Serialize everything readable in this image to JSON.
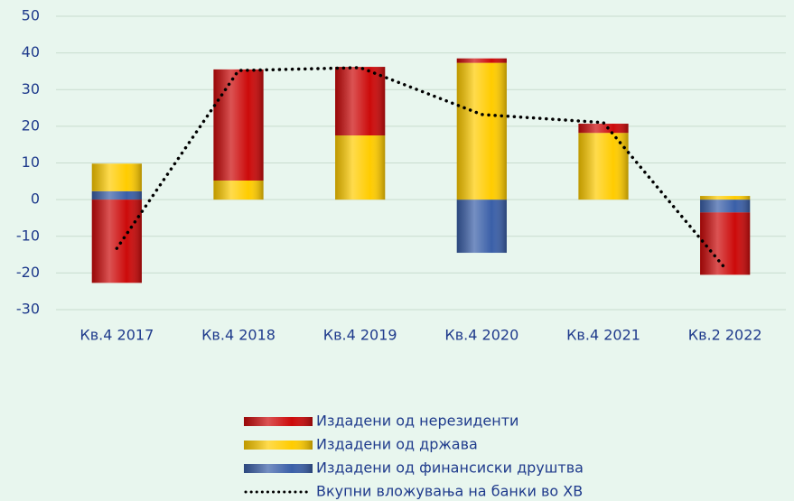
{
  "chart_data": {
    "type": "bar",
    "stacked": true,
    "categories": [
      "Кв.4 2017",
      "Кв.4 2018",
      "Кв.4 2019",
      "Кв.4 2020",
      "Кв.4 2021",
      "Кв.2 2022"
    ],
    "series": [
      {
        "name": "Издадени од нерезиденти",
        "color": "#cc0a0a",
        "values": [
          -22.7,
          30.3,
          18.7,
          1.2,
          2.5,
          -17
        ]
      },
      {
        "name": "Издадени од држава",
        "color": "#ffcc00",
        "values": [
          7.5,
          5.2,
          17.5,
          37.3,
          18.2,
          1
        ]
      },
      {
        "name": "Издадени од финансиски друштва",
        "color": "#3a5fa8",
        "values": [
          2.3,
          0,
          0,
          -14.5,
          0,
          -3.5
        ]
      },
      {
        "name": "Вкупни вложувања на банки во ХВ",
        "type": "line",
        "color": "#000000",
        "values": [
          -13.3,
          35.2,
          36,
          23.2,
          21,
          -18.7
        ]
      }
    ],
    "ylim": [
      -30,
      50
    ],
    "yticks": [
      -30,
      -20,
      -10,
      0,
      10,
      20,
      30,
      40,
      50
    ],
    "grid": true
  }
}
